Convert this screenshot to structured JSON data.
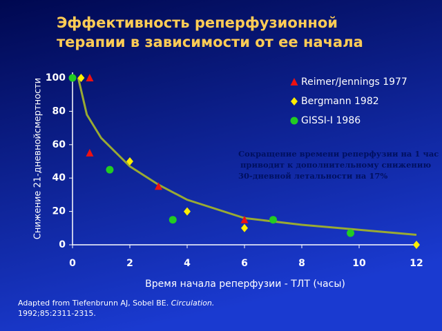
{
  "chart_data": {
    "type": "scatter",
    "title": [
      "Эффективность реперфузионной",
      "терапии в зависимости от ее начала"
    ],
    "y_label": "Снижение 21-дневнойсмертности",
    "x_label": "Время начала реперфузии - ТЛТ (часы)",
    "annotation": [
      "Сокращение времени реперфузии на 1 час",
      "приводит к дополнительному снижению",
      "30-дневной летальности на 17%"
    ],
    "source": [
      "Adapted from Tiefenbrunn AJ, Sobel BE. ",
      "Circulation.",
      "1992;85:2311-2315."
    ],
    "xlim": [
      0,
      12
    ],
    "xticks": [
      0,
      2,
      4,
      6,
      8,
      10,
      12
    ],
    "ylim": [
      0,
      100
    ],
    "yticks": [
      0,
      20,
      40,
      60,
      80,
      100
    ],
    "series": [
      {
        "name": "Reimer/Jennings 1977",
        "color": "#ee1111",
        "marker": "triangle",
        "x": [
          0.6,
          0.6,
          3,
          6
        ],
        "values": [
          100,
          55,
          35,
          15
        ]
      },
      {
        "name": "Bergmann 1982",
        "color": "#ffee00",
        "marker": "diamond",
        "x": [
          0.3,
          2,
          4,
          6,
          12
        ],
        "values": [
          100,
          50,
          20,
          10,
          0
        ]
      },
      {
        "name": "GISSI-I 1986",
        "color": "#22cc22",
        "marker": "circle",
        "x": [
          0,
          1.3,
          3.5,
          7,
          9.7
        ],
        "values": [
          100,
          45,
          15,
          15,
          7
        ]
      }
    ],
    "trend": {
      "color": "#99aa33",
      "x": [
        0.2,
        0.5,
        1,
        2,
        3,
        4,
        6,
        8,
        10,
        12
      ],
      "values": [
        100,
        78,
        64,
        47,
        36,
        27,
        16,
        12,
        9,
        6
      ]
    }
  }
}
